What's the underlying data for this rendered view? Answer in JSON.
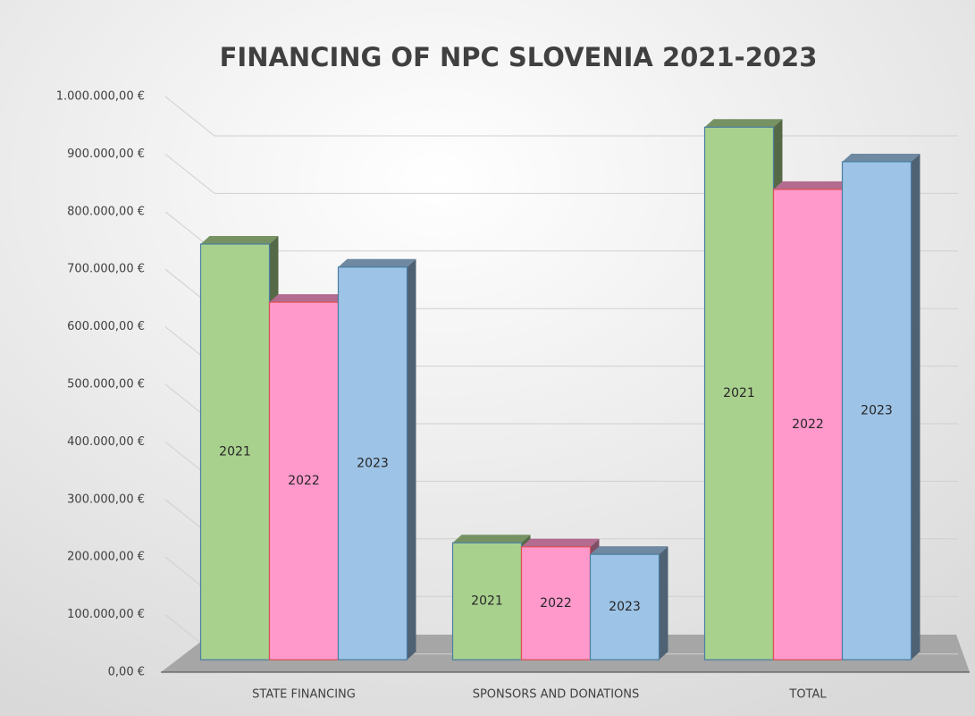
{
  "chart_data": {
    "type": "bar3d",
    "title": "FINANCING OF NPC SLOVENIA 2021-2023",
    "categories": [
      "STATE FINANCING",
      "SPONSORS AND DONATIONS",
      "TOTAL"
    ],
    "series": [
      {
        "name": "2021",
        "color": "#a9d18e",
        "values": [
          722000,
          203000,
          925000
        ]
      },
      {
        "name": "2022",
        "color": "#ff99cc",
        "values": [
          621000,
          196000,
          817000
        ]
      },
      {
        "name": "2023",
        "color": "#9dc3e6",
        "values": [
          682000,
          183000,
          865000
        ]
      }
    ],
    "ylim": [
      0,
      1000000
    ],
    "yticks": [
      {
        "value": 0,
        "label": "0,00 €"
      },
      {
        "value": 100000,
        "label": "100.000,00 €"
      },
      {
        "value": 200000,
        "label": "200.000,00 €"
      },
      {
        "value": 300000,
        "label": "300.000,00 €"
      },
      {
        "value": 400000,
        "label": "400.000,00 €"
      },
      {
        "value": 500000,
        "label": "500.000,00 €"
      },
      {
        "value": 600000,
        "label": "600.000,00 €"
      },
      {
        "value": 700000,
        "label": "700.000,00 €"
      },
      {
        "value": 800000,
        "label": "800.000,00 €"
      },
      {
        "value": 900000,
        "label": "900.000,00 €"
      },
      {
        "value": 1000000,
        "label": "1.000.000,00 €"
      }
    ],
    "grid": true
  }
}
